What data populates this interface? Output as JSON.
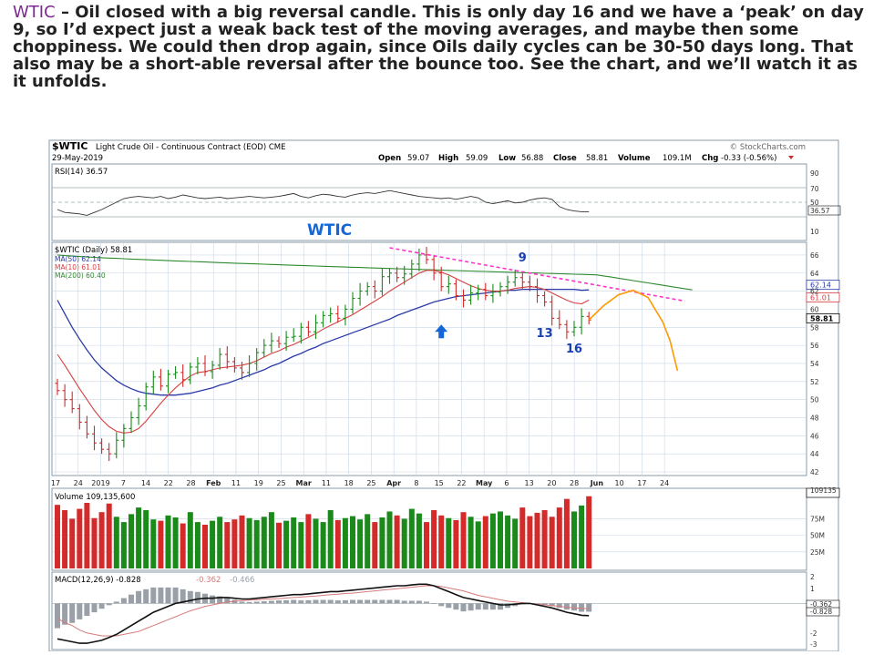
{
  "commentary": {
    "ticker": "WTIC",
    "text": " – Oil closed with a big reversal candle. This is only day 16 and we have a ‘peak’ on day 9, so I’d expect just a weak back test of the moving averages, and maybe then some choppiness.   We could then drop again, since Oils daily cycles can be 30-50 days long.   That also may be a short-able reversal  after the bounce  too.   See the chart, and we’ll watch it as it unfolds."
  },
  "header": {
    "symbol": "$WTIC",
    "name": "Light Crude Oil - Continuous Contract (EOD) CME",
    "date": "29-May-2019",
    "source": "© StockCharts.com",
    "open_label": "Open",
    "open": "59.07",
    "high_label": "High",
    "high": "59.09",
    "low_label": "Low",
    "low": "56.88",
    "close_label": "Close",
    "close": "58.81",
    "volume_label": "Volume",
    "volume": "109.1M",
    "chg_label": "Chg",
    "chg": "-0.33 (-0.56%)"
  },
  "colors": {
    "up": "#1a8a1a",
    "down": "#d42a2a",
    "ma50": "#2a3aa8",
    "ma10": "#d84040",
    "ma200": "#2f8a2f",
    "trendline": "#ff33cc",
    "projection": "#ff9900",
    "arrow": "#1566d6",
    "annotation": "#1a3fb0",
    "grid": "#c9d6e6"
  },
  "chart_data": [
    {
      "type": "line",
      "panel": "RSI",
      "legend": "RSI(14) 36.57",
      "ylim": [
        0,
        100
      ],
      "y_ticks": [
        "90",
        "70",
        "50",
        "36.57",
        "10"
      ],
      "series": [
        {
          "name": "RSI(14)",
          "values": [
            40,
            36,
            35,
            34,
            32,
            36,
            40,
            45,
            50,
            55,
            57,
            58,
            57,
            56,
            58,
            55,
            57,
            60,
            58,
            56,
            55,
            56,
            57,
            55,
            56,
            57,
            58,
            57,
            56,
            57,
            58,
            60,
            62,
            58,
            56,
            59,
            61,
            60,
            58,
            57,
            60,
            62,
            63,
            62,
            64,
            66,
            64,
            62,
            60,
            58,
            57,
            56,
            55,
            56,
            54,
            56,
            58,
            56,
            50,
            48,
            50,
            52,
            49,
            50,
            53,
            55,
            56,
            54,
            44,
            40,
            38,
            37,
            37
          ]
        }
      ]
    },
    {
      "type": "candlestick",
      "panel": "Price",
      "legend": [
        "$WTIC (Daily) 58.81",
        "MA(50) 62.14",
        "MA(10) 61.01",
        "MA(200) 60.40"
      ],
      "title": "WTIC",
      "ylim": [
        42,
        67
      ],
      "y_ticks": [
        66,
        64,
        62,
        60,
        58,
        56,
        54,
        52,
        50,
        48,
        46,
        44,
        42
      ],
      "last_values": [
        "62.14",
        "61.01",
        "58.81"
      ],
      "x_ticks": [
        "17",
        "24",
        "2019",
        "7",
        "14",
        "22",
        "28",
        "Feb",
        "11",
        "19",
        "25",
        "Mar",
        "11",
        "18",
        "25",
        "Apr",
        "8",
        "15",
        "22",
        "May",
        "6",
        "13",
        "20",
        "28",
        "Jun",
        "10",
        "17",
        "24"
      ],
      "close": [
        51.0,
        50.0,
        49.0,
        47.5,
        46.2,
        45.2,
        44.5,
        44.0,
        45.5,
        46.8,
        48.0,
        49.3,
        51.4,
        52.5,
        51.5,
        52.8,
        53.0,
        52.2,
        53.6,
        54.0,
        53.1,
        53.8,
        55.0,
        54.2,
        53.5,
        53.0,
        54.0,
        55.2,
        56.0,
        56.5,
        56.2,
        56.9,
        57.0,
        58.0,
        57.5,
        58.5,
        59.3,
        59.5,
        59.0,
        60.0,
        61.2,
        62.0,
        62.5,
        62.0,
        63.6,
        64.0,
        63.5,
        63.9,
        65.0,
        66.0,
        65.5,
        64.0,
        62.5,
        62.8,
        61.5,
        61.0,
        61.8,
        62.2,
        61.5,
        61.9,
        62.5,
        63.0,
        63.5,
        63.0,
        62.5,
        61.5,
        60.8,
        59.0,
        58.3,
        57.5,
        58.0,
        59.2,
        58.81
      ],
      "ma50": [
        61.0,
        59.5,
        58.0,
        56.7,
        55.5,
        54.4,
        53.5,
        52.8,
        52.1,
        51.6,
        51.2,
        50.9,
        50.7,
        50.6,
        50.5,
        50.5,
        50.5,
        50.6,
        50.7,
        50.9,
        51.1,
        51.3,
        51.6,
        51.8,
        52.1,
        52.4,
        52.7,
        53.0,
        53.3,
        53.7,
        54.0,
        54.4,
        54.8,
        55.1,
        55.5,
        55.8,
        56.2,
        56.5,
        56.8,
        57.1,
        57.4,
        57.7,
        58.0,
        58.3,
        58.6,
        58.9,
        59.3,
        59.6,
        59.9,
        60.2,
        60.5,
        60.8,
        61.0,
        61.2,
        61.4,
        61.5,
        61.6,
        61.7,
        61.8,
        61.9,
        62.0,
        62.1,
        62.1,
        62.2,
        62.2,
        62.2,
        62.2,
        62.2,
        62.2,
        62.2,
        62.2,
        62.1,
        62.14
      ],
      "ma10": [
        55.0,
        53.8,
        52.5,
        51.2,
        50.0,
        48.8,
        47.8,
        47.0,
        46.5,
        46.3,
        46.4,
        46.8,
        47.6,
        48.6,
        49.6,
        50.5,
        51.3,
        52.0,
        52.6,
        53.0,
        53.1,
        53.3,
        53.5,
        53.6,
        53.7,
        53.8,
        54.0,
        54.3,
        54.7,
        55.1,
        55.4,
        55.8,
        56.1,
        56.5,
        56.9,
        57.3,
        57.8,
        58.2,
        58.6,
        59.0,
        59.4,
        59.9,
        60.4,
        60.9,
        61.4,
        62.0,
        62.5,
        63.0,
        63.5,
        64.0,
        64.3,
        64.3,
        64.1,
        63.8,
        63.4,
        63.0,
        62.6,
        62.3,
        62.1,
        62.0,
        62.0,
        62.1,
        62.3,
        62.4,
        62.5,
        62.4,
        62.2,
        61.8,
        61.4,
        61.0,
        60.7,
        60.6,
        61.01
      ],
      "ma200": [
        66.0,
        63.5,
        62.14
      ],
      "annotations": [
        "9",
        "13",
        "16"
      ]
    },
    {
      "type": "bar",
      "panel": "Volume",
      "legend": "Volume 109,135,600",
      "ylim": [
        0,
        109135600
      ],
      "y_ticks": [
        "109135",
        "75M",
        "50M",
        "25M"
      ],
      "values": [
        96,
        88,
        75,
        90,
        99,
        76,
        85,
        98,
        78,
        70,
        82,
        92,
        88,
        74,
        72,
        80,
        77,
        68,
        85,
        70,
        66,
        72,
        78,
        70,
        74,
        80,
        76,
        73,
        78,
        85,
        69,
        72,
        77,
        70,
        82,
        75,
        70,
        88,
        73,
        76,
        79,
        74,
        82,
        70,
        77,
        86,
        80,
        75,
        90,
        83,
        70,
        88,
        80,
        76,
        73,
        85,
        78,
        71,
        79,
        83,
        86,
        80,
        75,
        92,
        79,
        84,
        88,
        78,
        92,
        105,
        86,
        95,
        109
      ]
    },
    {
      "type": "line",
      "panel": "MACD",
      "legend": [
        "MACD(12,26,9) -0.828",
        "-0.362",
        "-0.466"
      ],
      "ylim": [
        -3,
        2
      ],
      "y_ticks": [
        "2",
        "1",
        "-0.362",
        "-0.828",
        "-2",
        "-3"
      ],
      "series": [
        {
          "name": "MACD(12,26,9)",
          "values": [
            -2.4,
            -2.5,
            -2.6,
            -2.7,
            -2.7,
            -2.6,
            -2.5,
            -2.3,
            -2.1,
            -1.8,
            -1.5,
            -1.2,
            -0.9,
            -0.6,
            -0.4,
            -0.2,
            0.0,
            0.1,
            0.2,
            0.3,
            0.35,
            0.35,
            0.4,
            0.4,
            0.35,
            0.3,
            0.3,
            0.35,
            0.4,
            0.45,
            0.5,
            0.55,
            0.6,
            0.6,
            0.65,
            0.7,
            0.75,
            0.8,
            0.8,
            0.85,
            0.9,
            0.95,
            1.0,
            1.05,
            1.1,
            1.15,
            1.2,
            1.2,
            1.25,
            1.3,
            1.3,
            1.2,
            1.0,
            0.8,
            0.6,
            0.4,
            0.3,
            0.2,
            0.1,
            0.0,
            -0.1,
            -0.1,
            -0.05,
            0.0,
            0.0,
            -0.1,
            -0.2,
            -0.3,
            -0.45,
            -0.6,
            -0.7,
            -0.8,
            -0.828
          ]
        },
        {
          "name": "Signal",
          "values": [
            -1.0,
            -1.3,
            -1.5,
            -1.8,
            -2.0,
            -2.1,
            -2.2,
            -2.2,
            -2.2,
            -2.1,
            -2.0,
            -1.9,
            -1.7,
            -1.5,
            -1.3,
            -1.1,
            -0.9,
            -0.7,
            -0.5,
            -0.35,
            -0.2,
            -0.1,
            0.0,
            0.1,
            0.15,
            0.2,
            0.22,
            0.25,
            0.28,
            0.3,
            0.33,
            0.37,
            0.4,
            0.43,
            0.47,
            0.5,
            0.55,
            0.6,
            0.63,
            0.67,
            0.7,
            0.75,
            0.8,
            0.85,
            0.9,
            0.95,
            1.0,
            1.05,
            1.1,
            1.15,
            1.2,
            1.2,
            1.15,
            1.05,
            0.95,
            0.85,
            0.7,
            0.55,
            0.45,
            0.35,
            0.25,
            0.15,
            0.1,
            0.05,
            0.0,
            -0.05,
            -0.1,
            -0.15,
            -0.2,
            -0.25,
            -0.3,
            -0.33,
            -0.362
          ]
        }
      ]
    }
  ]
}
